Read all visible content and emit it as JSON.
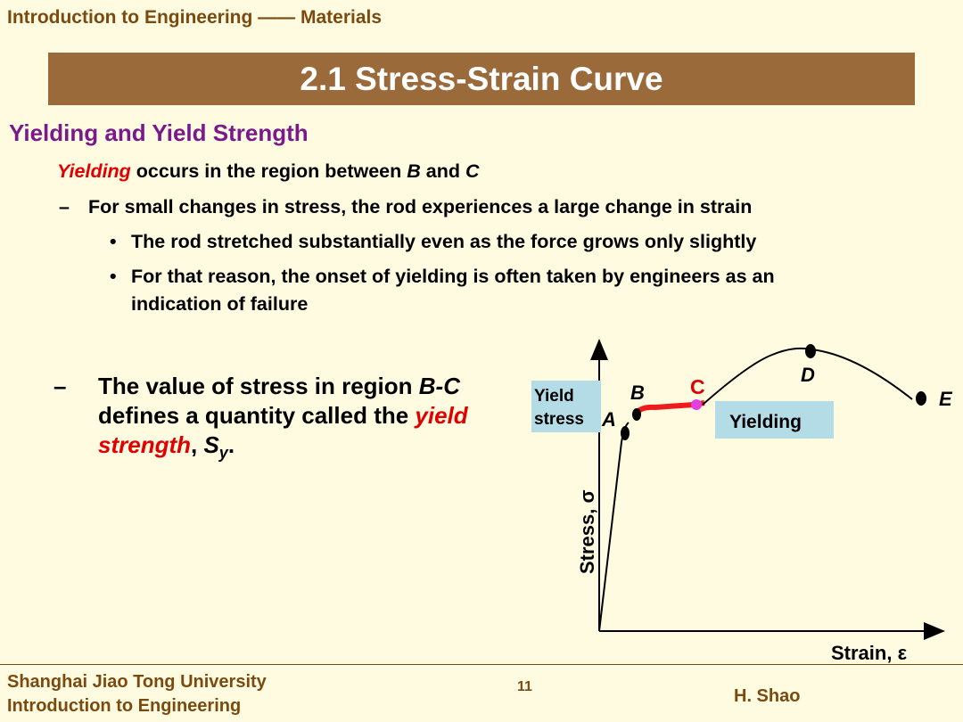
{
  "header": {
    "course_title": "Introduction to Engineering —— Materials"
  },
  "slide": {
    "title": "2.1 Stress-Strain Curve"
  },
  "section": {
    "heading": "Yielding and Yield Strength"
  },
  "body": {
    "intro_emphasis": "Yielding",
    "intro_text_1": " occurs in the region between ",
    "intro_b": "B",
    "intro_text_2": " and ",
    "intro_c": "C",
    "dash": "–",
    "bullet": "•",
    "point_1": "For small changes in stress, the rod experiences a large change in strain",
    "sub_1": "The rod stretched substantially even as the force grows only slightly",
    "sub_2_line1": "For that reason, the onset of yielding is often taken by engineers as an",
    "sub_2_line2": "indication of failure",
    "main_1": "The value of stress in region ",
    "main_bc": "B-C",
    "main_2": " defines a quantity called the ",
    "main_emphasis": "yield strength",
    "main_3": ", ",
    "main_s": "S",
    "main_sub": "y",
    "main_end": "."
  },
  "diagram": {
    "label_A": "A",
    "label_B": "B",
    "label_C": "C",
    "label_D": "D",
    "label_E": "E",
    "yield_stress_line1": "Yield",
    "yield_stress_line2": "stress",
    "yielding": "Yielding",
    "y_axis_label": "Stress, σ",
    "x_axis_label": "Strain, ε",
    "colors": {
      "yield_region": "#ee1c1c",
      "point_c": "#e040e0",
      "label_box": "#b4dce6",
      "label_c": "#e00000"
    }
  },
  "footer": {
    "university": "Shanghai Jiao Tong University",
    "course": "Introduction to Engineering",
    "page_number": "11",
    "author": "H. Shao"
  }
}
